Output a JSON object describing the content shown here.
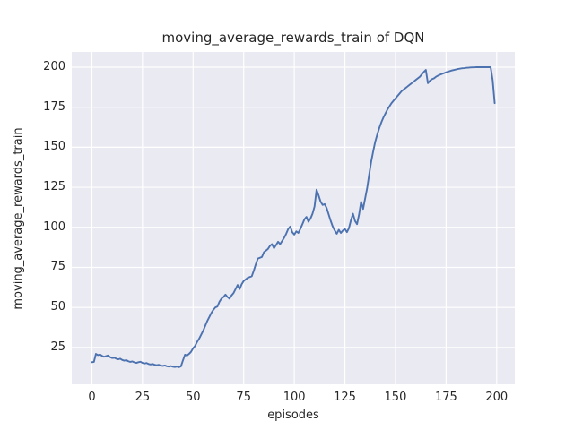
{
  "figure": {
    "title": "moving_average_rewards_train of DQN"
  },
  "style": {
    "line_color": "#4C72B0",
    "plot_bg": "#EAEAF2",
    "grid_color": "#FFFFFF",
    "text_color": "#262626",
    "fig_bg": "#FFFFFF"
  },
  "chart_data": {
    "type": "line",
    "title": "moving_average_rewards_train of DQN",
    "xlabel": "episodes",
    "ylabel": "moving_average_rewards_train",
    "xlim": [
      -9.95,
      208.95
    ],
    "ylim": [
      2.0,
      209.5
    ],
    "xticks": [
      0,
      25,
      50,
      75,
      100,
      125,
      150,
      175,
      200
    ],
    "yticks": [
      25,
      50,
      75,
      100,
      125,
      150,
      175,
      200
    ],
    "grid": true,
    "legend": "none",
    "series": [
      {
        "name": "moving_average_rewards_train",
        "points": [
          [
            0,
            15.8
          ],
          [
            1,
            16.0
          ],
          [
            2,
            21.0
          ],
          [
            3,
            20.2
          ],
          [
            4,
            20.6
          ],
          [
            5,
            19.8
          ],
          [
            6,
            19.2
          ],
          [
            7,
            19.6
          ],
          [
            8,
            20.0
          ],
          [
            9,
            19.0
          ],
          [
            10,
            18.4
          ],
          [
            11,
            18.8
          ],
          [
            12,
            18.0
          ],
          [
            13,
            17.6
          ],
          [
            14,
            18.0
          ],
          [
            15,
            17.2
          ],
          [
            16,
            16.8
          ],
          [
            17,
            17.1
          ],
          [
            18,
            16.4
          ],
          [
            19,
            16.0
          ],
          [
            20,
            16.3
          ],
          [
            21,
            15.7
          ],
          [
            22,
            15.4
          ],
          [
            23,
            15.8
          ],
          [
            24,
            16.1
          ],
          [
            25,
            15.4
          ],
          [
            26,
            15.0
          ],
          [
            27,
            15.3
          ],
          [
            28,
            14.7
          ],
          [
            29,
            14.4
          ],
          [
            30,
            14.7
          ],
          [
            31,
            14.2
          ],
          [
            32,
            13.9
          ],
          [
            33,
            14.2
          ],
          [
            34,
            13.7
          ],
          [
            35,
            13.5
          ],
          [
            36,
            13.8
          ],
          [
            37,
            13.3
          ],
          [
            38,
            13.1
          ],
          [
            39,
            13.4
          ],
          [
            40,
            13.0
          ],
          [
            41,
            12.8
          ],
          [
            42,
            13.1
          ],
          [
            43,
            12.7
          ],
          [
            44,
            13.2
          ],
          [
            45,
            17.0
          ],
          [
            46,
            20.5
          ],
          [
            47,
            20.0
          ],
          [
            48,
            21.0
          ],
          [
            49,
            22.3
          ],
          [
            50,
            24.5
          ],
          [
            51,
            26.0
          ],
          [
            52,
            28.5
          ],
          [
            53,
            30.5
          ],
          [
            54,
            33.0
          ],
          [
            55,
            35.5
          ],
          [
            56,
            38.5
          ],
          [
            57,
            41.5
          ],
          [
            58,
            44.0
          ],
          [
            59,
            46.5
          ],
          [
            60,
            48.5
          ],
          [
            61,
            50.0
          ],
          [
            62,
            50.5
          ],
          [
            63,
            53.5
          ],
          [
            64,
            55.5
          ],
          [
            65,
            56.5
          ],
          [
            66,
            58.0
          ],
          [
            67,
            56.5
          ],
          [
            68,
            55.5
          ],
          [
            69,
            57.5
          ],
          [
            70,
            59.0
          ],
          [
            71,
            61.5
          ],
          [
            72,
            64.0
          ],
          [
            73,
            61.5
          ],
          [
            74,
            64.5
          ],
          [
            75,
            66.5
          ],
          [
            76,
            67.5
          ],
          [
            77,
            68.5
          ],
          [
            78,
            69.0
          ],
          [
            79,
            69.5
          ],
          [
            80,
            73.0
          ],
          [
            81,
            77.0
          ],
          [
            82,
            80.5
          ],
          [
            83,
            81.0
          ],
          [
            84,
            81.5
          ],
          [
            85,
            84.5
          ],
          [
            86,
            85.5
          ],
          [
            87,
            86.5
          ],
          [
            88,
            88.5
          ],
          [
            89,
            89.5
          ],
          [
            90,
            87.0
          ],
          [
            91,
            89.0
          ],
          [
            92,
            91.0
          ],
          [
            93,
            89.5
          ],
          [
            94,
            91.5
          ],
          [
            95,
            93.5
          ],
          [
            96,
            96.0
          ],
          [
            97,
            99.0
          ],
          [
            98,
            100.5
          ],
          [
            99,
            97.0
          ],
          [
            100,
            95.5
          ],
          [
            101,
            97.5
          ],
          [
            102,
            96.5
          ],
          [
            103,
            99.0
          ],
          [
            104,
            102.0
          ],
          [
            105,
            105.0
          ],
          [
            106,
            106.5
          ],
          [
            107,
            103.5
          ],
          [
            108,
            105.5
          ],
          [
            109,
            108.5
          ],
          [
            110,
            113.0
          ],
          [
            111,
            123.5
          ],
          [
            112,
            120.0
          ],
          [
            113,
            116.0
          ],
          [
            114,
            114.0
          ],
          [
            115,
            114.5
          ],
          [
            116,
            112.0
          ],
          [
            117,
            108.0
          ],
          [
            118,
            104.0
          ],
          [
            119,
            100.5
          ],
          [
            120,
            98.0
          ],
          [
            121,
            96.0
          ],
          [
            122,
            98.5
          ],
          [
            123,
            96.5
          ],
          [
            124,
            98.0
          ],
          [
            125,
            99.0
          ],
          [
            126,
            97.0
          ],
          [
            127,
            99.5
          ],
          [
            128,
            104.5
          ],
          [
            129,
            108.5
          ],
          [
            130,
            104.0
          ],
          [
            131,
            102.0
          ],
          [
            132,
            108.0
          ],
          [
            133,
            116.0
          ],
          [
            134,
            111.5
          ],
          [
            135,
            118.0
          ],
          [
            136,
            124.5
          ],
          [
            137,
            133.0
          ],
          [
            138,
            141.0
          ],
          [
            139,
            147.5
          ],
          [
            140,
            153.5
          ],
          [
            141,
            158.0
          ],
          [
            142,
            162.0
          ],
          [
            143,
            165.5
          ],
          [
            144,
            168.5
          ],
          [
            145,
            171.0
          ],
          [
            146,
            173.5
          ],
          [
            147,
            175.5
          ],
          [
            148,
            177.5
          ],
          [
            149,
            179.0
          ],
          [
            150,
            180.5
          ],
          [
            151,
            182.0
          ],
          [
            152,
            183.5
          ],
          [
            153,
            185.0
          ],
          [
            154,
            186.0
          ],
          [
            155,
            187.0
          ],
          [
            156,
            188.0
          ],
          [
            157,
            189.0
          ],
          [
            158,
            190.0
          ],
          [
            159,
            191.0
          ],
          [
            160,
            192.0
          ],
          [
            161,
            193.0
          ],
          [
            162,
            194.0
          ],
          [
            163,
            195.5
          ],
          [
            164,
            197.0
          ],
          [
            165,
            198.3
          ],
          [
            166,
            190.0
          ],
          [
            167,
            191.5
          ],
          [
            168,
            192.5
          ],
          [
            169,
            193.0
          ],
          [
            170,
            194.0
          ],
          [
            171,
            194.7
          ],
          [
            172,
            195.3
          ],
          [
            173,
            195.8
          ],
          [
            174,
            196.3
          ],
          [
            175,
            196.8
          ],
          [
            176,
            197.2
          ],
          [
            177,
            197.6
          ],
          [
            178,
            198.0
          ],
          [
            179,
            198.3
          ],
          [
            180,
            198.6
          ],
          [
            181,
            198.9
          ],
          [
            182,
            199.1
          ],
          [
            183,
            199.3
          ],
          [
            184,
            199.4
          ],
          [
            185,
            199.6
          ],
          [
            186,
            199.7
          ],
          [
            187,
            199.8
          ],
          [
            188,
            199.9
          ],
          [
            189,
            199.9
          ],
          [
            190,
            200.0
          ],
          [
            191,
            200.0
          ],
          [
            192,
            200.0
          ],
          [
            193,
            200.0
          ],
          [
            194,
            200.0
          ],
          [
            195,
            200.0
          ],
          [
            196,
            200.0
          ],
          [
            197,
            200.0
          ],
          [
            198,
            192.0
          ],
          [
            199,
            177.5
          ]
        ]
      }
    ]
  }
}
